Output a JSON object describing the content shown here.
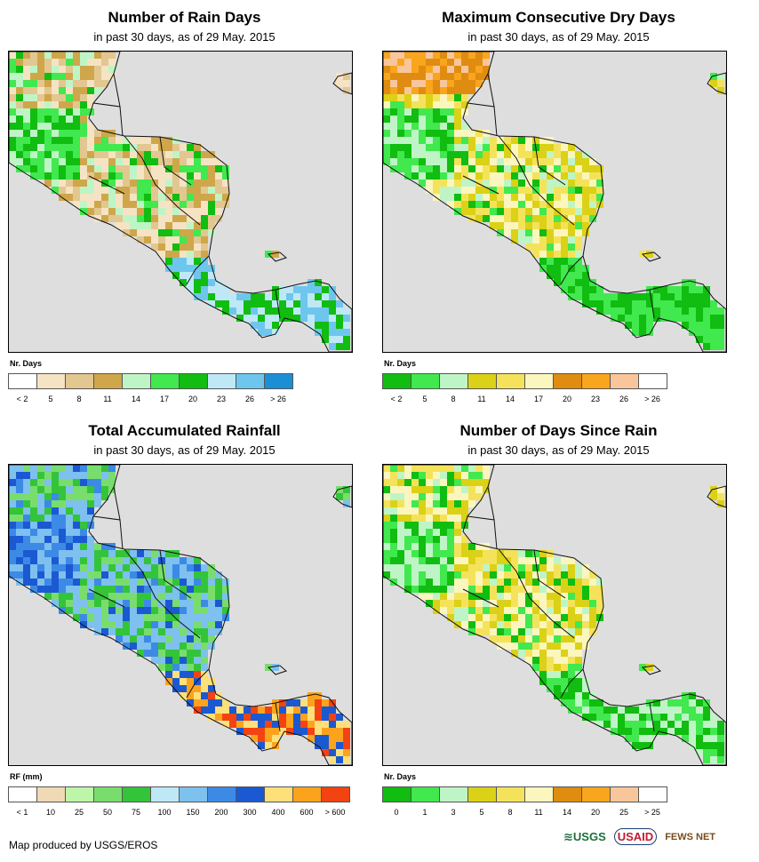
{
  "panels": {
    "rain_days": {
      "title": "Number of Rain Days",
      "subtitle": "in past 30 days, as of 29 May. 2015",
      "legend_title": "Nr. Days",
      "legend_colors": [
        "#ffffff",
        "#f5e3c4",
        "#e3c790",
        "#cfa74a",
        "#bff5c6",
        "#41e84e",
        "#10bd10",
        "#bfe8f7",
        "#6ec6ee",
        "#1a8fd6"
      ],
      "legend_labels": [
        "< 2",
        "5",
        "8",
        "11",
        "14",
        "17",
        "20",
        "23",
        "26",
        "> 26"
      ]
    },
    "dry_days": {
      "title": "Maximum Consecutive Dry Days",
      "subtitle": "in past 30 days, as of 29 May. 2015",
      "legend_title": "Nr. Days",
      "legend_colors": [
        "#10bd10",
        "#41e84e",
        "#bff5c6",
        "#dbd117",
        "#f4e35a",
        "#fbf6bd",
        "#df8c10",
        "#f9a51d",
        "#f9c69c",
        "#ffffff"
      ],
      "legend_labels": [
        "< 2",
        "5",
        "8",
        "11",
        "14",
        "17",
        "20",
        "23",
        "26",
        "> 26"
      ]
    },
    "rainfall": {
      "title": "Total Accumulated Rainfall",
      "subtitle": "in past 30 days, as of 29 May. 2015",
      "legend_title": "RF (mm)",
      "legend_colors": [
        "#ffffff",
        "#f0d9b5",
        "#bdf6a9",
        "#79dd6d",
        "#34c43a",
        "#bfe8f7",
        "#7ec0ee",
        "#3c8ae6",
        "#1b59d2",
        "#fde07a",
        "#fba31d",
        "#f34312"
      ],
      "legend_labels": [
        "< 1",
        "10",
        "25",
        "50",
        "75",
        "100",
        "150",
        "200",
        "300",
        "400",
        "600",
        "> 600"
      ]
    },
    "days_since_rain": {
      "title": "Number of Days Since Rain",
      "subtitle": "in past 30 days, as of 29 May. 2015",
      "legend_title": "Nr. Days",
      "legend_colors": [
        "#10bd10",
        "#41e84e",
        "#bff5c6",
        "#dbd117",
        "#f4e35a",
        "#fbf6bd",
        "#df8c10",
        "#f9a51d",
        "#f9c69c",
        "#ffffff"
      ],
      "legend_labels": [
        "0",
        "1",
        "3",
        "5",
        "8",
        "11",
        "14",
        "20",
        "25",
        "> 25"
      ]
    }
  },
  "footer": {
    "credit": "Map produced by USGS/EROS"
  },
  "logos": {
    "usgs": "≋USGS",
    "usaid": "USAID",
    "fews": "FEWS NET"
  }
}
